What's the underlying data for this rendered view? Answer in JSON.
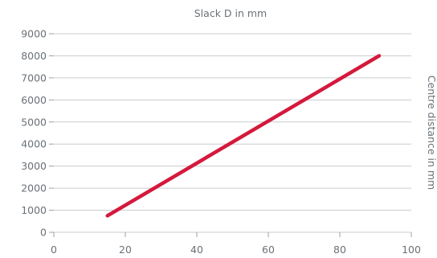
{
  "chart_data": {
    "type": "line",
    "title": "Slack D in mm",
    "xlabel": "",
    "ylabel": "Centre distance in mm",
    "xlim": [
      0,
      100
    ],
    "ylim": [
      0,
      9000
    ],
    "xticks": [
      "0",
      "20",
      "40",
      "60",
      "80",
      "100"
    ],
    "yticks": [
      "0",
      "1000",
      "2000",
      "3000",
      "4000",
      "5000",
      "6000",
      "7000",
      "8000",
      "9000"
    ],
    "grid": "horizontal",
    "series": [
      {
        "color": "#d4193c",
        "x": [
          15,
          91
        ],
        "y": [
          750,
          8000
        ]
      }
    ]
  }
}
